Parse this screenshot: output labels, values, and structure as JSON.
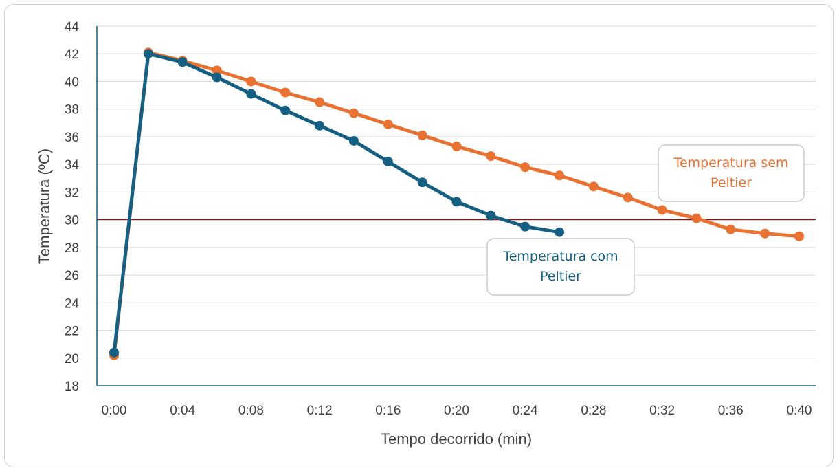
{
  "chart_data": {
    "type": "line",
    "title": "",
    "xlabel": "Tempo decorrido (min)",
    "ylabel": "Temperatura (ºC)",
    "ylim": [
      18,
      44
    ],
    "xlim_minutes": [
      0,
      40
    ],
    "x_tick_labels": [
      "0:00",
      "0:04",
      "0:08",
      "0:12",
      "0:16",
      "0:20",
      "0:24",
      "0:28",
      "0:32",
      "0:36",
      "0:40"
    ],
    "y_tick_labels": [
      "18",
      "20",
      "22",
      "24",
      "26",
      "28",
      "30",
      "32",
      "34",
      "36",
      "38",
      "40",
      "42",
      "44"
    ],
    "grid": "horizontal",
    "reference_line": {
      "y": 30,
      "color": "#c00000"
    },
    "series": [
      {
        "name": "Temperatura com Peltier",
        "color": "#156082",
        "x": [
          "0:00",
          "0:02",
          "0:04",
          "0:06",
          "0:08",
          "0:10",
          "0:12",
          "0:14",
          "0:16",
          "0:18",
          "0:20",
          "0:22",
          "0:24",
          "0:26"
        ],
        "values": [
          20.4,
          42.0,
          41.4,
          40.3,
          39.1,
          37.9,
          36.8,
          35.7,
          34.2,
          32.7,
          31.3,
          30.3,
          29.5,
          29.1
        ]
      },
      {
        "name": "Temperatura sem Peltier",
        "color": "#e97132",
        "x": [
          "0:00",
          "0:02",
          "0:04",
          "0:06",
          "0:08",
          "0:10",
          "0:12",
          "0:14",
          "0:16",
          "0:18",
          "0:20",
          "0:22",
          "0:24",
          "0:26",
          "0:28",
          "0:30",
          "0:32",
          "0:34",
          "0:36",
          "0:38",
          "0:40"
        ],
        "values": [
          20.2,
          42.1,
          41.5,
          40.8,
          40.0,
          39.2,
          38.5,
          37.7,
          36.9,
          36.1,
          35.3,
          34.6,
          33.8,
          33.2,
          32.4,
          31.6,
          30.7,
          30.1,
          29.3,
          29.0,
          28.8
        ]
      }
    ],
    "callouts": [
      {
        "series": 0,
        "lines": [
          "Temperatura com",
          "Peltier"
        ]
      },
      {
        "series": 1,
        "lines": [
          "Temperatura sem",
          "Peltier"
        ]
      }
    ]
  }
}
